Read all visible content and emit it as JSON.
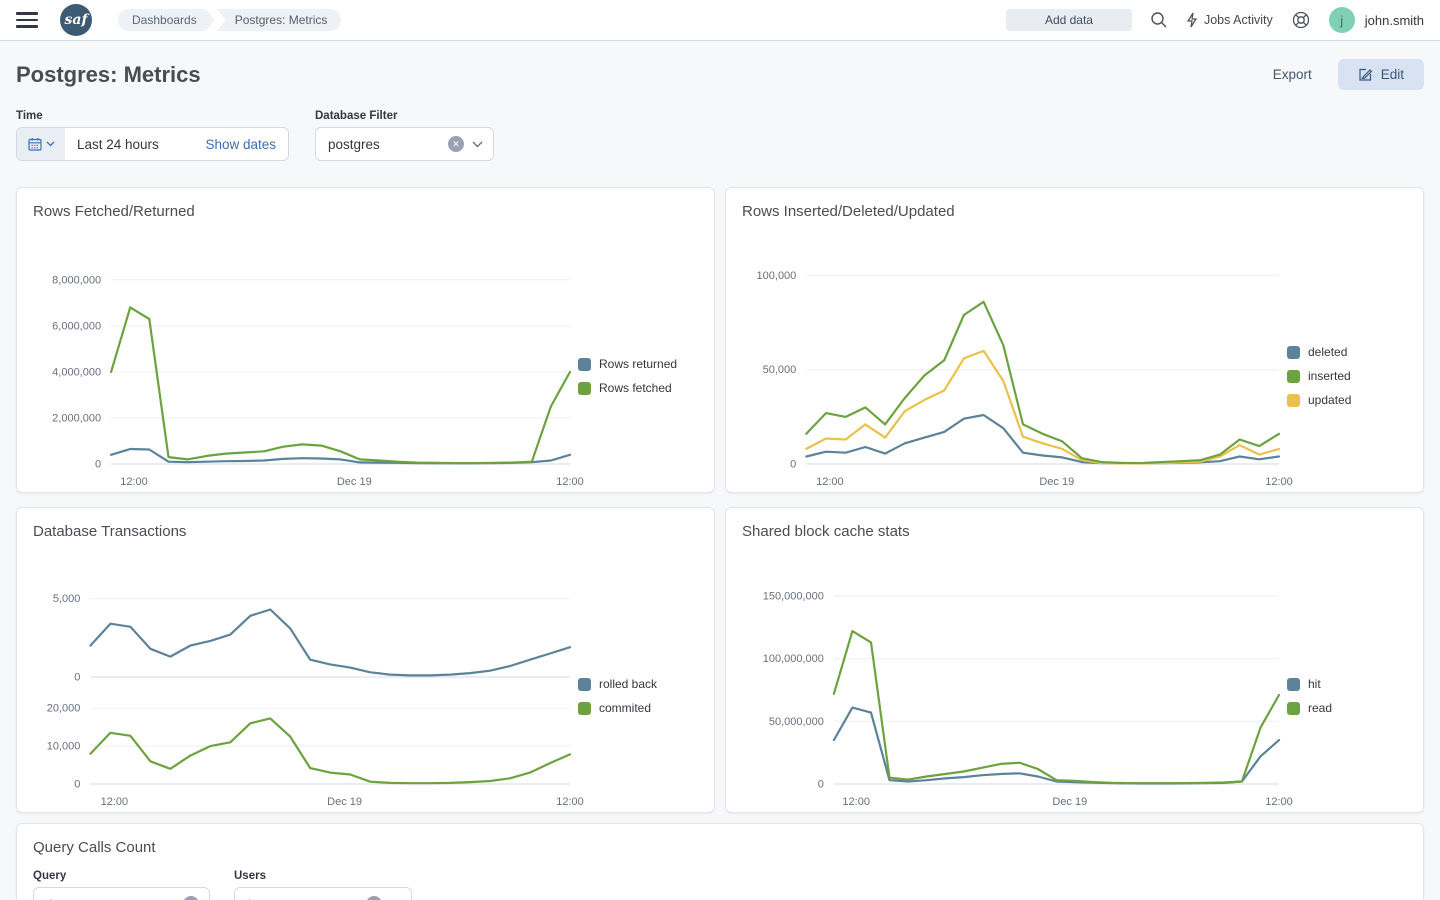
{
  "header": {
    "breadcrumbs": [
      "Dashboards",
      "Postgres: Metrics"
    ],
    "add_data_label": "Add data",
    "jobs_activity_label": "Jobs Activity",
    "user_initial": "j",
    "user_name": "john.smith"
  },
  "page": {
    "title": "Postgres: Metrics",
    "export_label": "Export",
    "edit_label": "Edit"
  },
  "filters": {
    "time_label": "Time",
    "time_value": "Last 24 hours",
    "show_dates_label": "Show dates",
    "database_label": "Database Filter",
    "database_value": "postgres"
  },
  "query_panel": {
    "title": "Query Calls Count",
    "query_label": "Query",
    "query_value": "*",
    "users_label": "Users",
    "users_value": "*"
  },
  "colors": {
    "accent_blue": "#3b6fb5",
    "series_blue": "#5c8399",
    "series_green": "#6ca23f",
    "series_yellow": "#eac14d",
    "avatar_green": "#7fd0b4",
    "edit_button_bg": "#d7e2f2",
    "edit_button_text": "#39587e"
  },
  "chart_data": [
    {
      "id": "rows-fetched-returned",
      "type": "line",
      "title": "Rows Fetched/Returned",
      "x_ticks": [
        {
          "label": "12:00",
          "f": 0.05
        },
        {
          "label": "Dec 19",
          "f": 0.53
        },
        {
          "label": "12:00",
          "f": 1.0
        }
      ],
      "legend": [
        {
          "label": "Rows returned",
          "color": "#5c8399"
        },
        {
          "label": "Rows fetched",
          "color": "#6ca23f"
        }
      ],
      "subplots": [
        {
          "ylim": [
            0,
            8600000
          ],
          "y_ticks": [
            {
              "v": 8000000,
              "label": "8,000,000"
            },
            {
              "v": 6000000,
              "label": "6,000,000"
            },
            {
              "v": 4000000,
              "label": "4,000,000"
            },
            {
              "v": 2000000,
              "label": "2,000,000"
            },
            {
              "v": 0,
              "label": "0"
            }
          ],
          "series": [
            {
              "name": "Rows returned",
              "color": "#5c8399",
              "values": [
                400000,
                650000,
                630000,
                100000,
                80000,
                100000,
                120000,
                130000,
                150000,
                220000,
                250000,
                240000,
                200000,
                70000,
                60000,
                50000,
                40000,
                30000,
                30000,
                30000,
                40000,
                50000,
                80000,
                150000,
                400000
              ]
            },
            {
              "name": "Rows fetched",
              "color": "#6ca23f",
              "values": [
                4000000,
                6800000,
                6300000,
                300000,
                200000,
                350000,
                450000,
                500000,
                550000,
                750000,
                850000,
                800000,
                550000,
                200000,
                150000,
                100000,
                60000,
                50000,
                40000,
                40000,
                50000,
                60000,
                100000,
                2500000,
                4000000
              ]
            }
          ]
        }
      ]
    },
    {
      "id": "rows-inserted-deleted-updated",
      "type": "line",
      "title": "Rows Inserted/Deleted/Updated",
      "x_ticks": [
        {
          "label": "12:00",
          "f": 0.05
        },
        {
          "label": "Dec 19",
          "f": 0.53
        },
        {
          "label": "12:00",
          "f": 1.0
        }
      ],
      "legend": [
        {
          "label": "deleted",
          "color": "#5c8399"
        },
        {
          "label": "inserted",
          "color": "#6ca23f"
        },
        {
          "label": "updated",
          "color": "#eac14d"
        }
      ],
      "subplots": [
        {
          "ylim": [
            0,
            105000
          ],
          "y_ticks": [
            {
              "v": 100000,
              "label": "100,000"
            },
            {
              "v": 50000,
              "label": "50,000"
            },
            {
              "v": 0,
              "label": "0"
            }
          ],
          "series": [
            {
              "name": "deleted",
              "color": "#5c8399",
              "values": [
                4000,
                6500,
                6000,
                9000,
                5500,
                11000,
                14000,
                17000,
                24000,
                26000,
                19000,
                6000,
                4500,
                3500,
                1000,
                400,
                300,
                300,
                400,
                600,
                900,
                1500,
                4000,
                2500,
                4000
              ]
            },
            {
              "name": "updated",
              "color": "#eac14d",
              "values": [
                8000,
                13500,
                13000,
                21000,
                14000,
                28000,
                34000,
                39000,
                56000,
                60000,
                44000,
                14500,
                11000,
                8000,
                2000,
                500,
                300,
                300,
                500,
                800,
                1200,
                4000,
                10000,
                5000,
                8000
              ]
            },
            {
              "name": "inserted",
              "color": "#6ca23f",
              "values": [
                16000,
                27000,
                25000,
                30000,
                21000,
                35000,
                47000,
                55000,
                79000,
                86000,
                63000,
                21000,
                16000,
                12000,
                3000,
                1000,
                600,
                500,
                1000,
                1500,
                2000,
                5000,
                13000,
                9500,
                16000
              ]
            }
          ]
        }
      ]
    },
    {
      "id": "database-transactions",
      "type": "line",
      "title": "Database Transactions",
      "x_ticks": [
        {
          "label": "12:00",
          "f": 0.05
        },
        {
          "label": "Dec 19",
          "f": 0.53
        },
        {
          "label": "12:00",
          "f": 1.0
        }
      ],
      "legend": [
        {
          "label": "rolled back",
          "color": "#5c8399"
        },
        {
          "label": "commited",
          "color": "#6ca23f"
        }
      ],
      "subplots": [
        {
          "ylim": [
            0,
            5800
          ],
          "y_ticks": [
            {
              "v": 5000,
              "label": "5,000"
            },
            {
              "v": 0,
              "label": "0"
            }
          ],
          "series": [
            {
              "name": "rolled back",
              "color": "#5c8399",
              "values": [
                2000,
                3400,
                3200,
                1800,
                1300,
                2000,
                2300,
                2700,
                3900,
                4300,
                3100,
                1100,
                800,
                600,
                300,
                150,
                100,
                100,
                150,
                250,
                400,
                700,
                1100,
                1500,
                1900
              ]
            }
          ]
        },
        {
          "ylim": [
            0,
            24000
          ],
          "y_ticks": [
            {
              "v": 20000,
              "label": "20,000"
            },
            {
              "v": 10000,
              "label": "10,000"
            },
            {
              "v": 0,
              "label": "0"
            }
          ],
          "series": [
            {
              "name": "commited",
              "color": "#6ca23f",
              "values": [
                8000,
                13500,
                12700,
                6000,
                4000,
                7500,
                10000,
                11000,
                16000,
                17300,
                12500,
                4200,
                3000,
                2500,
                600,
                300,
                200,
                200,
                300,
                500,
                800,
                1500,
                3000,
                5500,
                7800
              ]
            }
          ]
        }
      ]
    },
    {
      "id": "shared-block-cache-stats",
      "type": "line",
      "title": "Shared block cache stats",
      "x_ticks": [
        {
          "label": "12:00",
          "f": 0.05
        },
        {
          "label": "Dec 19",
          "f": 0.53
        },
        {
          "label": "12:00",
          "f": 1.0
        }
      ],
      "legend": [
        {
          "label": "hit",
          "color": "#5c8399"
        },
        {
          "label": "read",
          "color": "#6ca23f"
        }
      ],
      "subplots": [
        {
          "ylim": [
            0,
            158000000
          ],
          "y_ticks": [
            {
              "v": 150000000,
              "label": "150,000,000"
            },
            {
              "v": 100000000,
              "label": "100,000,000"
            },
            {
              "v": 50000000,
              "label": "50,000,000"
            },
            {
              "v": 0,
              "label": "0"
            }
          ],
          "series": [
            {
              "name": "hit",
              "color": "#5c8399",
              "values": [
                35000000,
                61000000,
                57000000,
                3000000,
                2000000,
                3000000,
                4500000,
                5500000,
                7000000,
                8000000,
                8500000,
                6000000,
                2000000,
                1500000,
                1000000,
                600000,
                500000,
                400000,
                400000,
                500000,
                600000,
                900000,
                2000000,
                22000000,
                35000000
              ]
            },
            {
              "name": "read",
              "color": "#6ca23f",
              "values": [
                72000000,
                122000000,
                113000000,
                5000000,
                3500000,
                6000000,
                8000000,
                10000000,
                13000000,
                16000000,
                17000000,
                12000000,
                3000000,
                2500000,
                1500000,
                900000,
                700000,
                600000,
                600000,
                700000,
                900000,
                1200000,
                2000000,
                45000000,
                71000000
              ]
            }
          ]
        }
      ]
    }
  ]
}
